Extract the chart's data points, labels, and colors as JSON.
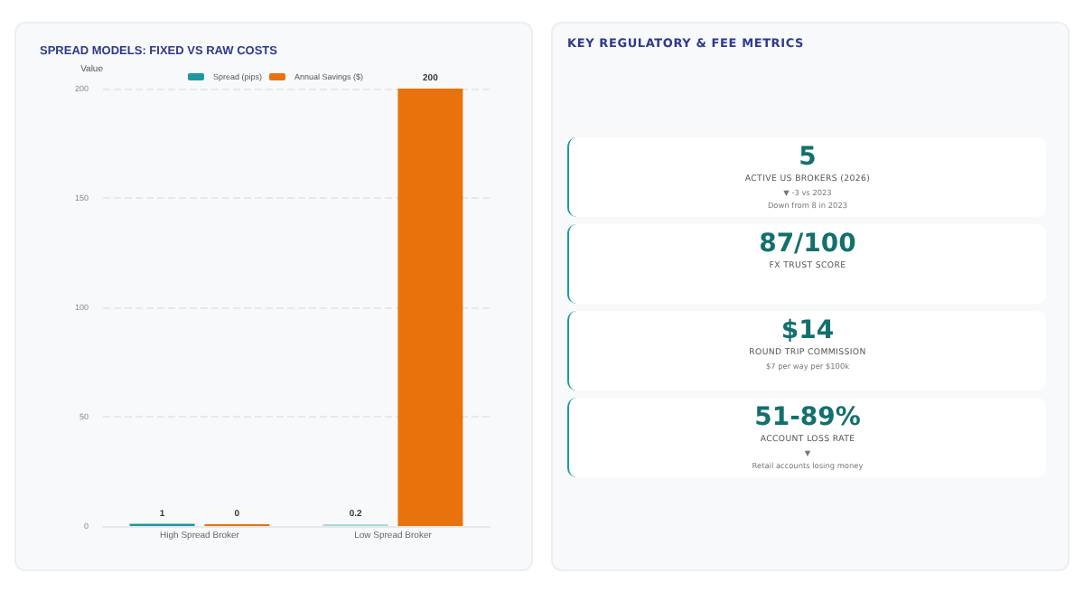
{
  "chart_data": [
    {
      "type": "bar",
      "title": "SPREAD MODELS: FIXED VS RAW COSTS",
      "ylabel": "Value",
      "categories": [
        "High Spread Broker",
        "Low Spread Broker"
      ],
      "series": [
        {
          "name": "Spread (pips)",
          "color": "#1a9aa0",
          "colors": [
            "#1a9aa0",
            "#a8dadc"
          ],
          "values": [
            1,
            0.2
          ],
          "value_labels": [
            "1",
            "0.2"
          ]
        },
        {
          "name": "Annual Savings ($)",
          "color": "#e8730c",
          "values": [
            0,
            200
          ],
          "value_labels": [
            "0",
            "200"
          ]
        }
      ],
      "ylim": [
        0,
        200
      ],
      "yticks": [
        0,
        50,
        100,
        150,
        200
      ],
      "grid": "y",
      "legend": "top"
    },
    {
      "type": "other",
      "title": "KEY REGULATORY & FEE METRICS",
      "categories": [
        "ACTIVE US BROKERS (2026)",
        "FX TRUST SCORE",
        "ROUND TRIP COMMISSION",
        "ACCOUNT LOSS RATE"
      ],
      "value_labels": [
        "5",
        "87/100",
        "$14",
        "51-89%"
      ],
      "annotations": [
        {
          "text": "▼ -3 vs 2023",
          "x": "ACTIVE US BROKERS (2026)"
        },
        {
          "text": "Down from 8 in 2023",
          "x": "ACTIVE US BROKERS (2026)"
        },
        {
          "text": "$7 per way per $100k",
          "x": "ROUND TRIP COMMISSION"
        },
        {
          "text": "▼",
          "x": "ACCOUNT LOSS RATE"
        },
        {
          "text": "Retail accounts losing money",
          "x": "ACCOUNT LOSS RATE"
        }
      ]
    }
  ]
}
